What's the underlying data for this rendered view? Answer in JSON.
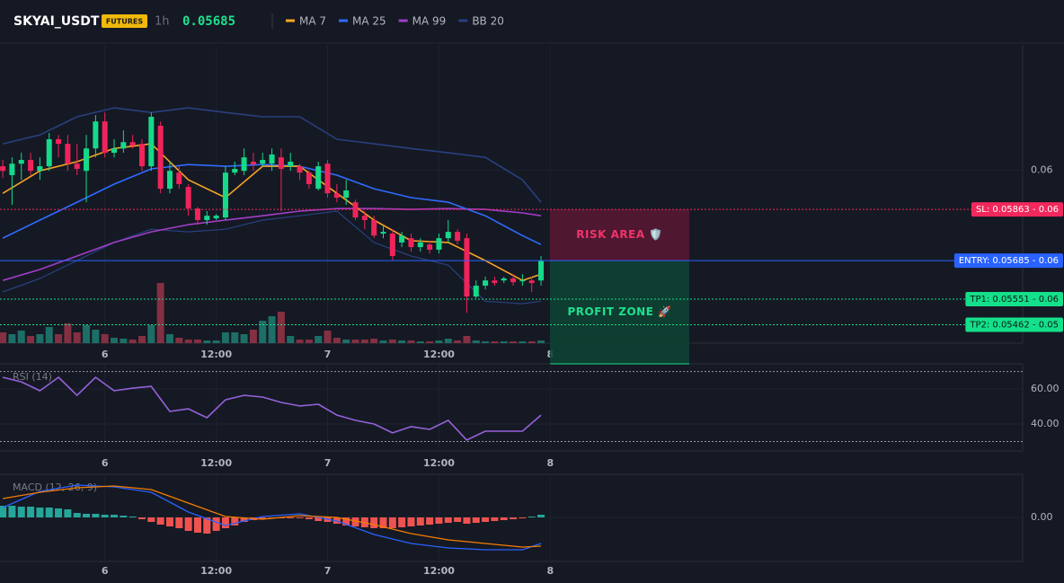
{
  "header": {
    "symbol": "SKYAI_USDT",
    "badge": "FUTURES",
    "interval": "1h",
    "price": "0.05685"
  },
  "chart_data": [
    {
      "type": "candlestick",
      "x": [
        13,
        14,
        15,
        16,
        17,
        18,
        19,
        20,
        21,
        22,
        23,
        24,
        25,
        26,
        27,
        28,
        29,
        30,
        31,
        32,
        33,
        34,
        35,
        36,
        37,
        38,
        39,
        40,
        41,
        42,
        43,
        44,
        45,
        46,
        47,
        48,
        49,
        50,
        51,
        52,
        53,
        54,
        55,
        56,
        57,
        58,
        59,
        60,
        61,
        62,
        63,
        64,
        65,
        66,
        67,
        68,
        69,
        70,
        71
      ],
      "open": [
        0.06013,
        0.05982,
        0.06022,
        0.06035,
        0.05997,
        0.06013,
        0.06107,
        0.06091,
        0.06022,
        0.05997,
        0.06075,
        0.06169,
        0.0606,
        0.06075,
        0.06097,
        0.06091,
        0.06013,
        0.06154,
        0.05935,
        0.05991,
        0.05941,
        0.05866,
        0.05826,
        0.05832,
        0.05835,
        0.05991,
        0.05997,
        0.06029,
        0.06022,
        0.06022,
        0.06044,
        0.06013,
        0.06013,
        0.05991,
        0.05935,
        0.06022,
        0.05919,
        0.05904,
        0.05888,
        0.05841,
        0.05826,
        0.05779,
        0.05779,
        0.05748,
        0.05763,
        0.05732,
        0.05741,
        0.05723,
        0.05763,
        0.05785,
        0.05763,
        0.0556,
        0.05598,
        0.05616,
        0.05616,
        0.05623,
        0.05613,
        0.05616,
        0.05616
      ],
      "high": [
        0.06035,
        0.06044,
        0.0606,
        0.0606,
        0.06044,
        0.06129,
        0.06122,
        0.06122,
        0.06091,
        0.06122,
        0.06191,
        0.062,
        0.06107,
        0.06138,
        0.06122,
        0.06107,
        0.062,
        0.06169,
        0.06029,
        0.06013,
        0.05951,
        0.05872,
        0.05857,
        0.05847,
        0.06013,
        0.06029,
        0.06075,
        0.0606,
        0.0606,
        0.06075,
        0.06075,
        0.0606,
        0.06022,
        0.05997,
        0.06029,
        0.06035,
        0.05951,
        0.05966,
        0.05897,
        0.05857,
        0.05841,
        0.0581,
        0.05794,
        0.05785,
        0.05779,
        0.05763,
        0.05754,
        0.05779,
        0.05826,
        0.05794,
        0.05779,
        0.05616,
        0.05629,
        0.05629,
        0.05629,
        0.05638,
        0.05638,
        0.05629,
        0.05701
      ],
      "low": [
        0.05972,
        0.05879,
        0.05966,
        0.05982,
        0.05966,
        0.05997,
        0.06044,
        0.05997,
        0.05982,
        0.05888,
        0.06044,
        0.06044,
        0.06044,
        0.0606,
        0.06075,
        0.05997,
        0.05997,
        0.05919,
        0.05919,
        0.05935,
        0.05841,
        0.0581,
        0.0581,
        0.05826,
        0.05826,
        0.05982,
        0.05982,
        0.05997,
        0.06013,
        0.05997,
        0.05857,
        0.05997,
        0.05966,
        0.05935,
        0.05929,
        0.05904,
        0.05888,
        0.05879,
        0.05826,
        0.05794,
        0.05763,
        0.05763,
        0.05685,
        0.05732,
        0.05716,
        0.05716,
        0.0571,
        0.0571,
        0.05748,
        0.05741,
        0.05504,
        0.05554,
        0.05585,
        0.05598,
        0.05607,
        0.05598,
        0.05598,
        0.05576,
        0.05598
      ],
      "close": [
        0.05997,
        0.06022,
        0.06035,
        0.05997,
        0.06013,
        0.06107,
        0.06091,
        0.06022,
        0.06004,
        0.06075,
        0.06169,
        0.0606,
        0.06075,
        0.06097,
        0.06085,
        0.06013,
        0.06185,
        0.05935,
        0.05997,
        0.05951,
        0.05866,
        0.05826,
        0.05841,
        0.05841,
        0.05991,
        0.06004,
        0.06044,
        0.06019,
        0.06035,
        0.06054,
        0.06004,
        0.06029,
        0.05991,
        0.05951,
        0.06013,
        0.05919,
        0.05904,
        0.05929,
        0.05835,
        0.05826,
        0.05772,
        0.05785,
        0.05701,
        0.05772,
        0.05732,
        0.05748,
        0.05723,
        0.05763,
        0.05785,
        0.05754,
        0.0556,
        0.05598,
        0.05616,
        0.05607,
        0.05623,
        0.0561,
        0.05616,
        0.05607,
        0.05685
      ],
      "up_color": "#16d98a",
      "down_color": "#f0245a",
      "volume": {
        "values": [
          12,
          10,
          14,
          8,
          10,
          18,
          10,
          22,
          12,
          20,
          15,
          10,
          6,
          5,
          4,
          8,
          20,
          67,
          10,
          6,
          4,
          4,
          3,
          3,
          12,
          12,
          10,
          15,
          25,
          30,
          35,
          8,
          4,
          4,
          8,
          14,
          6,
          4,
          4,
          4,
          5,
          3,
          4,
          3,
          3,
          2,
          2,
          3,
          5,
          3,
          8,
          3,
          2,
          2,
          2,
          2,
          2,
          2,
          3
        ],
        "ylim": [
          0,
          70
        ],
        "up_color": "#1d6e66",
        "down_color": "#843042"
      },
      "series": [
        {
          "name": "MA 7",
          "color": "#f5a524",
          "x": [
            13,
            17,
            21,
            25,
            29,
            33,
            37,
            41,
            45,
            49,
            53,
            57,
            61,
            65,
            69,
            71
          ],
          "values": [
            0.05919,
            0.05997,
            0.06029,
            0.06075,
            0.06091,
            0.05966,
            0.05904,
            0.06013,
            0.06013,
            0.05919,
            0.05826,
            0.05754,
            0.05748,
            0.05685,
            0.05616,
            0.05638
          ]
        },
        {
          "name": "MA 25",
          "color": "#2f6bff",
          "x": [
            13,
            17,
            21,
            25,
            29,
            33,
            37,
            41,
            45,
            49,
            53,
            57,
            61,
            65,
            69,
            71
          ],
          "values": [
            0.05763,
            0.05826,
            0.05888,
            0.05951,
            0.06004,
            0.06019,
            0.06013,
            0.06019,
            0.06013,
            0.05982,
            0.05935,
            0.05904,
            0.05888,
            0.05841,
            0.05772,
            0.05741
          ]
        },
        {
          "name": "MA 99",
          "color": "#a23dc8",
          "x": [
            13,
            17,
            21,
            25,
            29,
            33,
            37,
            41,
            45,
            49,
            53,
            57,
            61,
            65,
            69,
            71
          ],
          "values": [
            0.05616,
            0.05654,
            0.05701,
            0.05748,
            0.05785,
            0.0581,
            0.05826,
            0.05841,
            0.05857,
            0.05866,
            0.05866,
            0.05863,
            0.05866,
            0.05863,
            0.05851,
            0.05841
          ]
        },
        {
          "name": "BB 20",
          "color": "#28407f",
          "x": [
            13,
            17,
            21,
            25,
            29,
            33,
            37,
            41,
            45,
            49,
            53,
            57,
            61,
            65,
            69,
            71
          ],
          "values": [
            0.06091,
            0.06122,
            0.06185,
            0.06216,
            0.062,
            0.06216,
            0.062,
            0.06185,
            0.06185,
            0.06107,
            0.06091,
            0.06075,
            0.0606,
            0.06044,
            0.05966,
            0.05888
          ],
          "lower": [
            0.05576,
            0.05623,
            0.05685,
            0.05748,
            0.05794,
            0.05785,
            0.05794,
            0.05826,
            0.05841,
            0.05857,
            0.05748,
            0.05701,
            0.05669,
            0.05544,
            0.05535,
            0.05544
          ]
        }
      ],
      "xlim": [
        12.7,
        122.9
      ],
      "xticks": [
        {
          "value": 24,
          "label": "6"
        },
        {
          "value": 36,
          "label": "12:00"
        },
        {
          "value": 48,
          "label": "7"
        },
        {
          "value": 60,
          "label": "12:00"
        },
        {
          "value": 72,
          "label": "8"
        }
      ],
      "ylim": [
        0.05398,
        0.06435
      ],
      "yticks": [
        0.06
      ],
      "levels": [
        {
          "value": 0.05863,
          "label": "SL: 0.05863 - 0.06",
          "color": "#f2285c",
          "text_color": "#ffffff",
          "style": "dotted"
        },
        {
          "value": 0.05685,
          "label": "ENTRY: 0.05685 - 0.06",
          "color": "#2962ff",
          "text_color": "#ffffff",
          "style": "solid"
        },
        {
          "value": 0.05551,
          "label": "TP1: 0.05551 - 0.06",
          "color": "#14e08a",
          "text_color": "#0b1a14",
          "style": "dotted"
        },
        {
          "value": 0.05462,
          "label": "TP2: 0.05462 - 0.05",
          "color": "#14e08a",
          "text_color": "#0b1a14",
          "style": "dotted"
        }
      ],
      "zones": [
        {
          "label": "RISK AREA 🛡️",
          "color": "#5a1834",
          "text_color": "#f0346a"
        },
        {
          "label": "PROFIT ZONE 🚀",
          "color": "#0d4434",
          "text_color": "#1ee08f"
        }
      ]
    },
    {
      "type": "line",
      "title": "RSI (14)",
      "x": [
        13,
        15,
        17,
        19,
        21,
        23,
        25,
        27,
        29,
        31,
        33,
        35,
        37,
        39,
        41,
        43,
        45,
        47,
        49,
        51,
        53,
        55,
        57,
        59,
        61,
        63,
        65,
        67,
        69,
        71
      ],
      "series": [
        {
          "color": "#9461d8",
          "values": [
            66.7,
            64.1,
            59.0,
            66.7,
            56.4,
            66.7,
            59.0,
            60.5,
            61.5,
            47.2,
            48.7,
            43.6,
            53.8,
            56.4,
            55.4,
            52.3,
            50.3,
            51.3,
            45.1,
            42.1,
            40.0,
            34.9,
            38.5,
            36.9,
            42.1,
            30.8,
            35.9,
            35.9,
            35.9,
            45.1
          ]
        }
      ],
      "levels": [
        70,
        30
      ],
      "xlim": [
        12.7,
        122.9
      ],
      "xticks": [
        {
          "value": 24,
          "label": "6"
        },
        {
          "value": 36,
          "label": "12:00"
        },
        {
          "value": 48,
          "label": "7"
        },
        {
          "value": 60,
          "label": "12:00"
        },
        {
          "value": 72,
          "label": "8"
        }
      ],
      "ylim": [
        24.6,
        74.4
      ],
      "yticks": [
        {
          "value": 60,
          "label": "60.00"
        },
        {
          "value": 40,
          "label": "40.00"
        }
      ]
    },
    {
      "type": "macd",
      "title": "MACD (12, 26, 9)",
      "x": [
        13,
        14,
        15,
        16,
        17,
        18,
        19,
        20,
        21,
        22,
        23,
        24,
        25,
        26,
        27,
        28,
        29,
        30,
        31,
        32,
        33,
        34,
        35,
        36,
        37,
        38,
        39,
        40,
        41,
        42,
        43,
        44,
        45,
        46,
        47,
        48,
        49,
        50,
        51,
        52,
        53,
        54,
        55,
        56,
        57,
        58,
        59,
        60,
        61,
        62,
        63,
        64,
        65,
        66,
        67,
        68,
        69,
        70,
        71
      ],
      "values": [
        0.00013,
        0.00013,
        0.00012,
        0.00012,
        0.00011,
        0.00011,
        0.0001,
        9e-05,
        5e-05,
        4e-05,
        4e-05,
        3e-05,
        3e-05,
        2e-05,
        1e-05,
        -2e-05,
        -5e-05,
        -8e-05,
        -0.0001,
        -0.00012,
        -0.00015,
        -0.00017,
        -0.00018,
        -0.00015,
        -0.00012,
        -9e-05,
        -5e-05,
        -3e-05,
        -2e-05,
        -1e-05,
        -1e-05,
        -1e-05,
        -1e-05,
        -2e-05,
        -4e-05,
        -5e-05,
        -7e-05,
        -9e-05,
        -0.0001,
        -0.00011,
        -0.00012,
        -0.00012,
        -0.00012,
        -0.00011,
        -0.0001,
        -9e-05,
        -8e-05,
        -7e-05,
        -6e-05,
        -5e-05,
        -7e-05,
        -6e-05,
        -5e-05,
        -4e-05,
        -3e-05,
        -2e-05,
        -1e-05,
        1e-05,
        3e-05
      ],
      "positive_color": "#26a69a",
      "negative_color": "#ef5350",
      "series": [
        {
          "color": "#2962ff",
          "x": [
            13,
            17,
            21,
            25,
            29,
            33,
            37,
            41,
            45,
            49,
            53,
            57,
            61,
            65,
            69,
            71
          ],
          "values": [
            0.00011,
            0.00029,
            0.00036,
            0.00034,
            0.00028,
            6e-05,
            -9e-05,
            1e-05,
            4e-05,
            -4e-05,
            -0.00019,
            -0.00029,
            -0.00034,
            -0.00036,
            -0.00036,
            -0.00029
          ]
        },
        {
          "color": "#f57c00",
          "x": [
            13,
            17,
            21,
            25,
            29,
            33,
            37,
            41,
            45,
            49,
            53,
            57,
            61,
            65,
            69,
            71
          ],
          "values": [
            0.00021,
            0.00028,
            0.00033,
            0.00035,
            0.00031,
            0.00016,
            1e-05,
            -2e-05,
            2e-05,
            0,
            -8e-05,
            -0.00018,
            -0.00025,
            -0.00029,
            -0.00033,
            -0.00032
          ]
        }
      ],
      "xlim": [
        12.7,
        122.9
      ],
      "xticks": [
        {
          "value": 24,
          "label": "6"
        },
        {
          "value": 36,
          "label": "12:00"
        },
        {
          "value": 48,
          "label": "7"
        },
        {
          "value": 60,
          "label": "12:00"
        },
        {
          "value": 72,
          "label": "8"
        }
      ],
      "ylim": [
        -0.00049,
        0.00048
      ],
      "yticks": [
        {
          "value": 0,
          "label": "0.00"
        }
      ]
    }
  ]
}
